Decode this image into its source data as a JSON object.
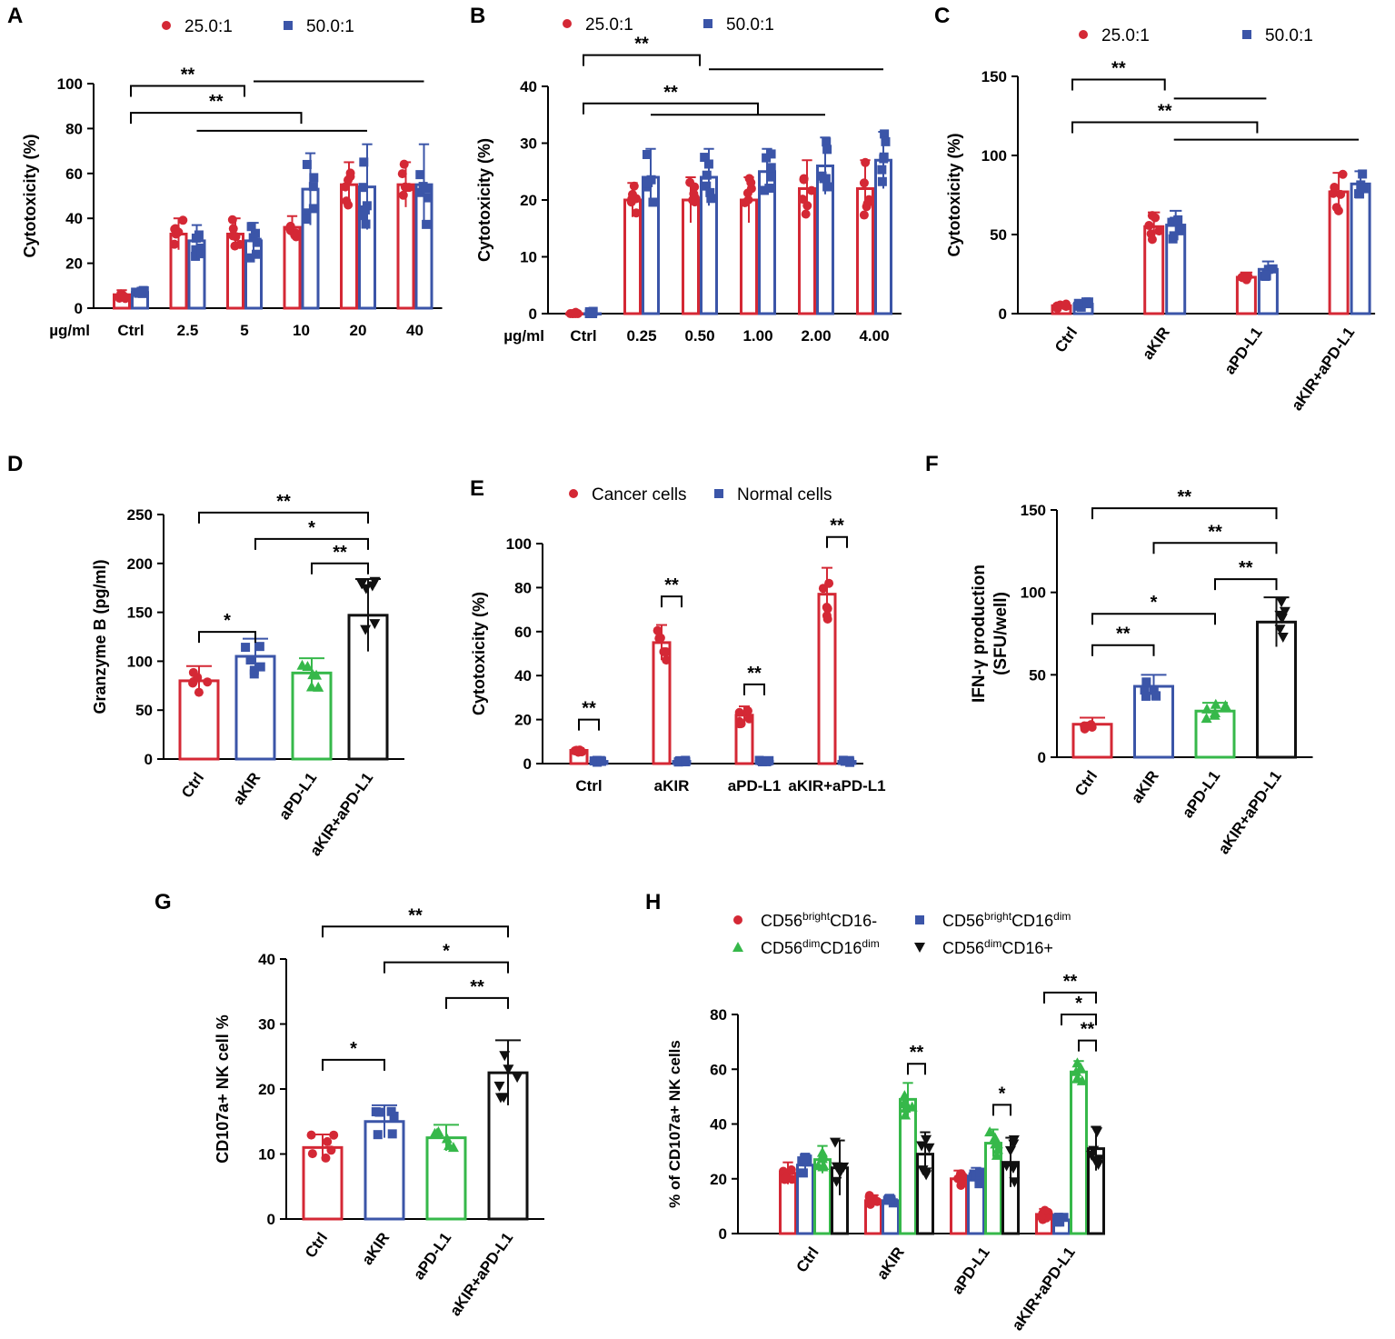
{
  "figure": {
    "colors": {
      "red": "#d42835",
      "blue": "#3b55a8",
      "green": "#36b84a",
      "black": "#111111"
    }
  },
  "chart_data": [
    {
      "panel": "A",
      "type": "bar",
      "ylabel": "Cytotoxicity (%)",
      "xlabel": "µg/ml",
      "categories": [
        "Ctrl",
        "2.5",
        "5",
        "10",
        "20",
        "40"
      ],
      "ylim": [
        0,
        100
      ],
      "yticks": [
        0,
        20,
        40,
        60,
        80,
        100
      ],
      "legend": [
        "25.0:1",
        "50.0:1"
      ],
      "series": [
        {
          "name": "25.0:1",
          "color": "red",
          "marker": "circle",
          "values": [
            6,
            33,
            33,
            36,
            55,
            55
          ],
          "err": [
            2,
            7,
            7,
            5,
            10,
            10
          ]
        },
        {
          "name": "50.0:1",
          "color": "blue",
          "marker": "square",
          "values": [
            7,
            30,
            30,
            53,
            54,
            55
          ],
          "err": [
            1,
            7,
            8,
            16,
            19,
            18
          ]
        }
      ],
      "sig": [
        {
          "from": 0,
          "to": 3,
          "label": "**",
          "y": 87
        },
        {
          "from": 1,
          "to": 4,
          "label": "",
          "y": 79
        },
        {
          "from": 0,
          "to": 2,
          "label": "**",
          "y": 99
        },
        {
          "from": 2,
          "to": 5,
          "label": "",
          "y": 101
        }
      ]
    },
    {
      "panel": "B",
      "type": "bar",
      "ylabel": "Cytotoxicity (%)",
      "xlabel": "µg/ml",
      "categories": [
        "Ctrl",
        "0.25",
        "0.50",
        "1.00",
        "2.00",
        "4.00"
      ],
      "ylim": [
        0,
        40
      ],
      "yticks": [
        0,
        10,
        20,
        30,
        40
      ],
      "legend": [
        "25.0:1",
        "50.0:1"
      ],
      "series": [
        {
          "name": "25.0:1",
          "color": "red",
          "marker": "circle",
          "values": [
            0,
            20,
            20,
            20,
            22,
            22
          ],
          "err": [
            0,
            3,
            4,
            4,
            5,
            5
          ]
        },
        {
          "name": "50.0:1",
          "color": "blue",
          "marker": "square",
          "values": [
            0,
            24,
            24,
            25,
            26,
            27
          ],
          "err": [
            0,
            5,
            5,
            4,
            5,
            5
          ]
        }
      ],
      "sig": [
        {
          "from": 0,
          "to": 3,
          "label": "**",
          "y": 37
        },
        {
          "from": 1,
          "to": 4,
          "label": "",
          "y": 35
        },
        {
          "from": 0,
          "to": 2,
          "label": "**",
          "y": 45.5
        },
        {
          "from": 2,
          "to": 5,
          "label": "",
          "y": 43
        }
      ]
    },
    {
      "panel": "C",
      "type": "bar",
      "ylabel": "Cytotoxicity (%)",
      "categories": [
        "Ctrl",
        "aKIR",
        "aPD-L1",
        "aKIR+aPD-L1"
      ],
      "ylim": [
        0,
        150
      ],
      "yticks": [
        0,
        50,
        100,
        150
      ],
      "legend": [
        "25.0:1",
        "50.0:1"
      ],
      "series": [
        {
          "name": "25.0:1",
          "color": "red",
          "marker": "circle",
          "values": [
            5,
            55,
            23,
            77
          ],
          "err": [
            2,
            9,
            3,
            12
          ]
        },
        {
          "name": "50.0:1",
          "color": "blue",
          "marker": "square",
          "values": [
            6,
            56,
            28,
            82
          ],
          "err": [
            2,
            9,
            5,
            8
          ]
        }
      ],
      "sig": [
        {
          "from": 0,
          "to": 2,
          "label": "**",
          "y": 121
        },
        {
          "from": 1,
          "to": 3,
          "label": "",
          "y": 110
        },
        {
          "from": 0,
          "to": 1,
          "label": "**",
          "y": 148
        },
        {
          "from": 1,
          "to": 2,
          "label": "",
          "y": 136
        }
      ]
    },
    {
      "panel": "D",
      "type": "bar",
      "ylabel": "Granzyme B (pg/ml)",
      "categories": [
        "Ctrl",
        "aKIR",
        "aPD-L1",
        "aKIR+aPD-L1"
      ],
      "ylim": [
        0,
        250
      ],
      "yticks": [
        0,
        50,
        100,
        150,
        200,
        250
      ],
      "series": [
        {
          "name": "Granzyme B",
          "values": [
            80,
            105,
            88,
            147
          ],
          "err": [
            15,
            18,
            15,
            37
          ],
          "colors": [
            "red",
            "blue",
            "green",
            "black"
          ],
          "markers": [
            "circle",
            "square",
            "triangle-up",
            "triangle-down"
          ]
        }
      ],
      "sig": [
        {
          "from": 0,
          "to": 1,
          "label": "*",
          "y": 130
        },
        {
          "from": 2,
          "to": 3,
          "label": "**",
          "y": 200
        },
        {
          "from": 1,
          "to": 3,
          "label": "*",
          "y": 225
        },
        {
          "from": 0,
          "to": 3,
          "label": "**",
          "y": 252
        }
      ]
    },
    {
      "panel": "E",
      "type": "bar",
      "ylabel": "Cytotoxicity (%)",
      "categories": [
        "Ctrl",
        "aKIR",
        "aPD-L1",
        "aKIR+aPD-L1"
      ],
      "ylim": [
        0,
        100
      ],
      "yticks": [
        0,
        20,
        40,
        60,
        80,
        100
      ],
      "legend": [
        "Cancer cells",
        "Normal cells"
      ],
      "series": [
        {
          "name": "Cancer cells",
          "color": "red",
          "marker": "circle",
          "values": [
            6,
            55,
            22,
            77
          ],
          "err": [
            1,
            8,
            4,
            12
          ]
        },
        {
          "name": "Normal cells",
          "color": "blue",
          "marker": "square",
          "values": [
            1,
            1,
            1,
            1
          ],
          "err": [
            0,
            0,
            0,
            0
          ]
        }
      ],
      "sig": [
        {
          "group": 0,
          "label": "**",
          "y": 20
        },
        {
          "group": 1,
          "label": "**",
          "y": 76
        },
        {
          "group": 2,
          "label": "**",
          "y": 36
        },
        {
          "group": 3,
          "label": "**",
          "y": 103
        }
      ]
    },
    {
      "panel": "F",
      "type": "bar",
      "ylabel": "IFN-γ production (SFU/well)",
      "ylabel_lines": [
        "IFN-γ production",
        "(SFU/well)"
      ],
      "categories": [
        "Ctrl",
        "aKIR",
        "aPD-L1",
        "aKIR+aPD-L1"
      ],
      "ylim": [
        0,
        150
      ],
      "yticks": [
        0,
        50,
        100,
        150
      ],
      "series": [
        {
          "name": "IFN-γ",
          "values": [
            20,
            43,
            28,
            82
          ],
          "err": [
            4,
            7,
            5,
            15
          ],
          "colors": [
            "red",
            "blue",
            "green",
            "black"
          ],
          "markers": [
            "circle",
            "square",
            "triangle-up",
            "triangle-down"
          ]
        }
      ],
      "sig": [
        {
          "from": 0,
          "to": 1,
          "label": "**",
          "y": 68
        },
        {
          "from": 0,
          "to": 2,
          "label": "*",
          "y": 87
        },
        {
          "from": 2,
          "to": 3,
          "label": "**",
          "y": 108
        },
        {
          "from": 1,
          "to": 3,
          "label": "**",
          "y": 130
        },
        {
          "from": 0,
          "to": 3,
          "label": "**",
          "y": 151
        }
      ]
    },
    {
      "panel": "G",
      "type": "bar",
      "ylabel": "CD107a+ NK cell %",
      "categories": [
        "Ctrl",
        "aKIR",
        "aPD-L1",
        "aKIR+aPD-L1"
      ],
      "ylim": [
        0,
        40
      ],
      "yticks": [
        0,
        10,
        20,
        30,
        40
      ],
      "series": [
        {
          "name": "CD107a+",
          "values": [
            11,
            15,
            12.5,
            22.5
          ],
          "err": [
            2,
            2.5,
            2,
            5
          ],
          "colors": [
            "red",
            "blue",
            "green",
            "black"
          ],
          "markers": [
            "circle",
            "square",
            "triangle-up",
            "triangle-down"
          ]
        }
      ],
      "sig": [
        {
          "from": 0,
          "to": 1,
          "label": "*",
          "y": 24.5
        },
        {
          "from": 2,
          "to": 3,
          "label": "**",
          "y": 34
        },
        {
          "from": 1,
          "to": 3,
          "label": "*",
          "y": 39.5
        },
        {
          "from": 0,
          "to": 3,
          "label": "**",
          "y": 45
        }
      ]
    },
    {
      "panel": "H",
      "type": "bar",
      "ylabel": "% of CD107a+ NK cells",
      "categories": [
        "Ctrl",
        "aKIR",
        "aPD-L1",
        "aKIR+aPD-L1"
      ],
      "ylim": [
        0,
        80
      ],
      "yticks": [
        0,
        20,
        40,
        60,
        80
      ],
      "legend_items": [
        {
          "base": "CD56",
          "sup1": "bright",
          "mid": "CD16-",
          "sup2": ""
        },
        {
          "base": "CD56",
          "sup1": "bright",
          "mid": "CD16",
          "sup2": "dim"
        },
        {
          "base": "CD56",
          "sup1": "dim",
          "mid": "CD16",
          "sup2": "dim"
        },
        {
          "base": "CD56",
          "sup1": "dim",
          "mid": "CD16+",
          "sup2": ""
        }
      ],
      "series": [
        {
          "name": "CD56brightCD16-",
          "color": "red",
          "marker": "circle",
          "values": [
            22,
            12,
            20,
            7
          ],
          "err": [
            4,
            2,
            3,
            2
          ]
        },
        {
          "name": "CD56brightCD16dim",
          "color": "blue",
          "marker": "square",
          "values": [
            25,
            12,
            21,
            5
          ],
          "err": [
            4,
            1,
            3,
            1
          ]
        },
        {
          "name": "CD56dimCD16dim",
          "color": "green",
          "marker": "triangle-up",
          "values": [
            27,
            49,
            33,
            59
          ],
          "err": [
            5,
            6,
            5,
            4
          ]
        },
        {
          "name": "CD56dimCD16+",
          "color": "black",
          "marker": "triangle-down",
          "values": [
            24,
            29,
            26,
            31
          ],
          "err": [
            10,
            8,
            9,
            8
          ]
        }
      ],
      "sig": [
        {
          "group": 1,
          "from": 2,
          "to": 3,
          "label": "**",
          "y": 62
        },
        {
          "group": 2,
          "from": 2,
          "to": 3,
          "label": "*",
          "y": 47
        },
        {
          "group": 3,
          "from": 2,
          "to": 3,
          "label": "**",
          "y": 70.5
        },
        {
          "group": 3,
          "from": 1,
          "to": 3,
          "label": "*",
          "y": 80
        },
        {
          "group": 3,
          "from": 0,
          "to": 3,
          "label": "**",
          "y": 88
        }
      ]
    }
  ]
}
